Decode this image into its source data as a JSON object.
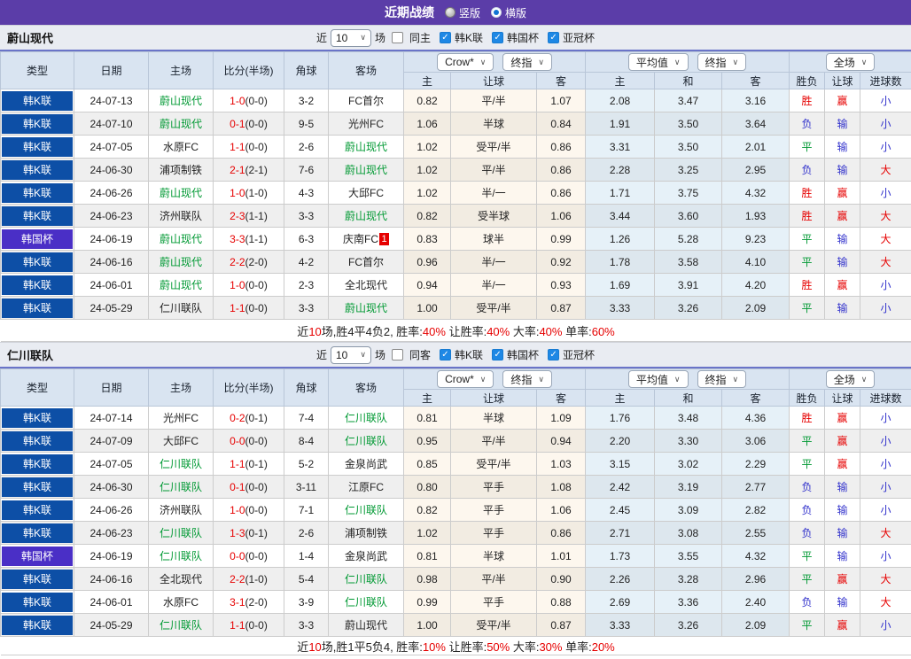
{
  "icons": {
    "checkmark": "✓",
    "chevron_down": "∨"
  },
  "titlebar": {
    "title": "近期战绩",
    "radios": [
      {
        "label": "竖版",
        "checked": false
      },
      {
        "label": "横版",
        "checked": true
      }
    ]
  },
  "controls": {
    "bookmaker": "Crow*",
    "final_odds": "终指",
    "average": "平均值",
    "final_odds2": "终指",
    "scope": "全场"
  },
  "columns": {
    "type": "类型",
    "date": "日期",
    "home": "主场",
    "score": "比分(半场)",
    "corner": "角球",
    "away": "客场",
    "ah_home": "主",
    "ah_line": "让球",
    "ah_away": "客",
    "eu_home": "主",
    "eu_draw": "和",
    "eu_away": "客",
    "res_outcome": "胜负",
    "res_handicap": "让球",
    "res_goals": "进球数"
  },
  "colors": {
    "titlebar_bg": "#5b3da8",
    "league_badge": "#0d4fa6",
    "cup_badge": "#4a2fc6",
    "team_highlight": "#009933",
    "win": "#e60000",
    "draw": "#009933",
    "lose": "#3333cc"
  },
  "sections": [
    {
      "team": "蔚山现代",
      "filters": {
        "prefix": "近",
        "count": "10",
        "suffix": "场",
        "same": "同主",
        "same_checked": false,
        "leagues": [
          "韩K联",
          "韩国杯",
          "亚冠杯"
        ]
      },
      "rows": [
        {
          "type": "韩K联",
          "cup": false,
          "date": "24-07-13",
          "home": "蔚山现代",
          "home_hl": true,
          "score": "1-0",
          "half": "(0-0)",
          "corner": "3-2",
          "away": "FC首尔",
          "away_hl": false,
          "away_card": "",
          "ah": [
            "0.82",
            "平/半",
            "1.07"
          ],
          "eu": [
            "2.08",
            "3.47",
            "3.16"
          ],
          "res": [
            "胜",
            "赢",
            "小"
          ]
        },
        {
          "type": "韩K联",
          "cup": false,
          "date": "24-07-10",
          "home": "蔚山现代",
          "home_hl": true,
          "score": "0-1",
          "half": "(0-0)",
          "corner": "9-5",
          "away": "光州FC",
          "away_hl": false,
          "away_card": "",
          "ah": [
            "1.06",
            "半球",
            "0.84"
          ],
          "eu": [
            "1.91",
            "3.50",
            "3.64"
          ],
          "res": [
            "负",
            "输",
            "小"
          ]
        },
        {
          "type": "韩K联",
          "cup": false,
          "date": "24-07-05",
          "home": "水原FC",
          "home_hl": false,
          "score": "1-1",
          "half": "(0-0)",
          "corner": "2-6",
          "away": "蔚山现代",
          "away_hl": true,
          "away_card": "",
          "ah": [
            "1.02",
            "受平/半",
            "0.86"
          ],
          "eu": [
            "3.31",
            "3.50",
            "2.01"
          ],
          "res": [
            "平",
            "输",
            "小"
          ]
        },
        {
          "type": "韩K联",
          "cup": false,
          "date": "24-06-30",
          "home": "浦项制铁",
          "home_hl": false,
          "score": "2-1",
          "half": "(2-1)",
          "corner": "7-6",
          "away": "蔚山现代",
          "away_hl": true,
          "away_card": "",
          "ah": [
            "1.02",
            "平/半",
            "0.86"
          ],
          "eu": [
            "2.28",
            "3.25",
            "2.95"
          ],
          "res": [
            "负",
            "输",
            "大"
          ]
        },
        {
          "type": "韩K联",
          "cup": false,
          "date": "24-06-26",
          "home": "蔚山现代",
          "home_hl": true,
          "score": "1-0",
          "half": "(1-0)",
          "corner": "4-3",
          "away": "大邱FC",
          "away_hl": false,
          "away_card": "",
          "ah": [
            "1.02",
            "半/一",
            "0.86"
          ],
          "eu": [
            "1.71",
            "3.75",
            "4.32"
          ],
          "res": [
            "胜",
            "赢",
            "小"
          ]
        },
        {
          "type": "韩K联",
          "cup": false,
          "date": "24-06-23",
          "home": "济州联队",
          "home_hl": false,
          "score": "2-3",
          "half": "(1-1)",
          "corner": "3-3",
          "away": "蔚山现代",
          "away_hl": true,
          "away_card": "",
          "ah": [
            "0.82",
            "受半球",
            "1.06"
          ],
          "eu": [
            "3.44",
            "3.60",
            "1.93"
          ],
          "res": [
            "胜",
            "赢",
            "大"
          ]
        },
        {
          "type": "韩国杯",
          "cup": true,
          "date": "24-06-19",
          "home": "蔚山现代",
          "home_hl": true,
          "score": "3-3",
          "half": "(1-1)",
          "corner": "6-3",
          "away": "庆南FC",
          "away_hl": false,
          "away_card": "1",
          "ah": [
            "0.83",
            "球半",
            "0.99"
          ],
          "eu": [
            "1.26",
            "5.28",
            "9.23"
          ],
          "res": [
            "平",
            "输",
            "大"
          ]
        },
        {
          "type": "韩K联",
          "cup": false,
          "date": "24-06-16",
          "home": "蔚山现代",
          "home_hl": true,
          "score": "2-2",
          "half": "(2-0)",
          "corner": "4-2",
          "away": "FC首尔",
          "away_hl": false,
          "away_card": "",
          "ah": [
            "0.96",
            "半/一",
            "0.92"
          ],
          "eu": [
            "1.78",
            "3.58",
            "4.10"
          ],
          "res": [
            "平",
            "输",
            "大"
          ]
        },
        {
          "type": "韩K联",
          "cup": false,
          "date": "24-06-01",
          "home": "蔚山现代",
          "home_hl": true,
          "score": "1-0",
          "half": "(0-0)",
          "corner": "2-3",
          "away": "全北现代",
          "away_hl": false,
          "away_card": "",
          "ah": [
            "0.94",
            "半/一",
            "0.93"
          ],
          "eu": [
            "1.69",
            "3.91",
            "4.20"
          ],
          "res": [
            "胜",
            "赢",
            "小"
          ]
        },
        {
          "type": "韩K联",
          "cup": false,
          "date": "24-05-29",
          "home": "仁川联队",
          "home_hl": false,
          "score": "1-1",
          "half": "(0-0)",
          "corner": "3-3",
          "away": "蔚山现代",
          "away_hl": true,
          "away_card": "",
          "ah": [
            "1.00",
            "受平/半",
            "0.87"
          ],
          "eu": [
            "3.33",
            "3.26",
            "2.09"
          ],
          "res": [
            "平",
            "输",
            "小"
          ]
        }
      ],
      "summary": [
        {
          "text": "近",
          "red": false
        },
        {
          "text": "10",
          "red": true
        },
        {
          "text": "场,胜4平4负2, 胜率:",
          "red": false
        },
        {
          "text": "40%",
          "red": true
        },
        {
          "text": " 让胜率:",
          "red": false
        },
        {
          "text": "40%",
          "red": true
        },
        {
          "text": " 大率:",
          "red": false
        },
        {
          "text": "40%",
          "red": true
        },
        {
          "text": " 单率:",
          "red": false
        },
        {
          "text": "60%",
          "red": true
        }
      ]
    },
    {
      "team": "仁川联队",
      "filters": {
        "prefix": "近",
        "count": "10",
        "suffix": "场",
        "same": "同客",
        "same_checked": false,
        "leagues": [
          "韩K联",
          "韩国杯",
          "亚冠杯"
        ]
      },
      "rows": [
        {
          "type": "韩K联",
          "cup": false,
          "date": "24-07-14",
          "home": "光州FC",
          "home_hl": false,
          "score": "0-2",
          "half": "(0-1)",
          "corner": "7-4",
          "away": "仁川联队",
          "away_hl": true,
          "away_card": "",
          "ah": [
            "0.81",
            "半球",
            "1.09"
          ],
          "eu": [
            "1.76",
            "3.48",
            "4.36"
          ],
          "res": [
            "胜",
            "赢",
            "小"
          ]
        },
        {
          "type": "韩K联",
          "cup": false,
          "date": "24-07-09",
          "home": "大邱FC",
          "home_hl": false,
          "score": "0-0",
          "half": "(0-0)",
          "corner": "8-4",
          "away": "仁川联队",
          "away_hl": true,
          "away_card": "",
          "ah": [
            "0.95",
            "平/半",
            "0.94"
          ],
          "eu": [
            "2.20",
            "3.30",
            "3.06"
          ],
          "res": [
            "平",
            "赢",
            "小"
          ]
        },
        {
          "type": "韩K联",
          "cup": false,
          "date": "24-07-05",
          "home": "仁川联队",
          "home_hl": true,
          "score": "1-1",
          "half": "(0-1)",
          "corner": "5-2",
          "away": "金泉尚武",
          "away_hl": false,
          "away_card": "",
          "ah": [
            "0.85",
            "受平/半",
            "1.03"
          ],
          "eu": [
            "3.15",
            "3.02",
            "2.29"
          ],
          "res": [
            "平",
            "赢",
            "小"
          ]
        },
        {
          "type": "韩K联",
          "cup": false,
          "date": "24-06-30",
          "home": "仁川联队",
          "home_hl": true,
          "score": "0-1",
          "half": "(0-0)",
          "corner": "3-11",
          "away": "江原FC",
          "away_hl": false,
          "away_card": "",
          "ah": [
            "0.80",
            "平手",
            "1.08"
          ],
          "eu": [
            "2.42",
            "3.19",
            "2.77"
          ],
          "res": [
            "负",
            "输",
            "小"
          ]
        },
        {
          "type": "韩K联",
          "cup": false,
          "date": "24-06-26",
          "home": "济州联队",
          "home_hl": false,
          "score": "1-0",
          "half": "(0-0)",
          "corner": "7-1",
          "away": "仁川联队",
          "away_hl": true,
          "away_card": "",
          "ah": [
            "0.82",
            "平手",
            "1.06"
          ],
          "eu": [
            "2.45",
            "3.09",
            "2.82"
          ],
          "res": [
            "负",
            "输",
            "小"
          ]
        },
        {
          "type": "韩K联",
          "cup": false,
          "date": "24-06-23",
          "home": "仁川联队",
          "home_hl": true,
          "score": "1-3",
          "half": "(0-1)",
          "corner": "2-6",
          "away": "浦项制铁",
          "away_hl": false,
          "away_card": "",
          "ah": [
            "1.02",
            "平手",
            "0.86"
          ],
          "eu": [
            "2.71",
            "3.08",
            "2.55"
          ],
          "res": [
            "负",
            "输",
            "大"
          ]
        },
        {
          "type": "韩国杯",
          "cup": true,
          "date": "24-06-19",
          "home": "仁川联队",
          "home_hl": true,
          "score": "0-0",
          "half": "(0-0)",
          "corner": "1-4",
          "away": "金泉尚武",
          "away_hl": false,
          "away_card": "",
          "ah": [
            "0.81",
            "半球",
            "1.01"
          ],
          "eu": [
            "1.73",
            "3.55",
            "4.32"
          ],
          "res": [
            "平",
            "输",
            "小"
          ]
        },
        {
          "type": "韩K联",
          "cup": false,
          "date": "24-06-16",
          "home": "全北现代",
          "home_hl": false,
          "score": "2-2",
          "half": "(1-0)",
          "corner": "5-4",
          "away": "仁川联队",
          "away_hl": true,
          "away_card": "",
          "ah": [
            "0.98",
            "平/半",
            "0.90"
          ],
          "eu": [
            "2.26",
            "3.28",
            "2.96"
          ],
          "res": [
            "平",
            "赢",
            "大"
          ]
        },
        {
          "type": "韩K联",
          "cup": false,
          "date": "24-06-01",
          "home": "水原FC",
          "home_hl": false,
          "score": "3-1",
          "half": "(2-0)",
          "corner": "3-9",
          "away": "仁川联队",
          "away_hl": true,
          "away_card": "",
          "ah": [
            "0.99",
            "平手",
            "0.88"
          ],
          "eu": [
            "2.69",
            "3.36",
            "2.40"
          ],
          "res": [
            "负",
            "输",
            "大"
          ]
        },
        {
          "type": "韩K联",
          "cup": false,
          "date": "24-05-29",
          "home": "仁川联队",
          "home_hl": true,
          "score": "1-1",
          "half": "(0-0)",
          "corner": "3-3",
          "away": "蔚山现代",
          "away_hl": false,
          "away_card": "",
          "ah": [
            "1.00",
            "受平/半",
            "0.87"
          ],
          "eu": [
            "3.33",
            "3.26",
            "2.09"
          ],
          "res": [
            "平",
            "赢",
            "小"
          ]
        }
      ],
      "summary": [
        {
          "text": "近",
          "red": false
        },
        {
          "text": "10",
          "red": true
        },
        {
          "text": "场,胜1平5负4, 胜率:",
          "red": false
        },
        {
          "text": "10%",
          "red": true
        },
        {
          "text": " 让胜率:",
          "red": false
        },
        {
          "text": "50%",
          "red": true
        },
        {
          "text": " 大率:",
          "red": false
        },
        {
          "text": "30%",
          "red": true
        },
        {
          "text": " 单率:",
          "red": false
        },
        {
          "text": "20%",
          "red": true
        }
      ]
    }
  ]
}
